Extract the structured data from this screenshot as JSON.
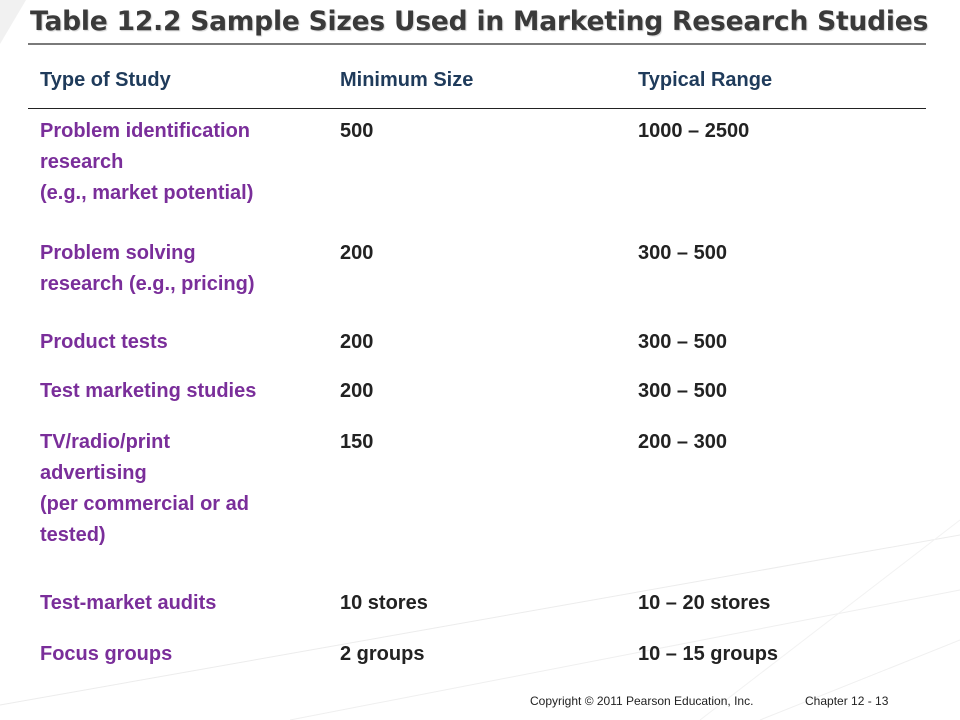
{
  "slide": {
    "title": "Table 12.2 Sample Sizes Used in Marketing Research Studies"
  },
  "table": {
    "headers": [
      "Type of Study",
      "Minimum Size",
      "Typical Range"
    ],
    "rows": [
      {
        "study_lines": [
          "Problem identification",
          "research",
          "(e.g., market potential)"
        ],
        "minimum": "500",
        "range": "1000 – 2500"
      },
      {
        "study_lines": [
          "Problem solving",
          "research (e.g., pricing)"
        ],
        "minimum": "200",
        "range": "300 – 500"
      },
      {
        "study_lines": [
          "Product tests"
        ],
        "minimum": "200",
        "range": "300 – 500"
      },
      {
        "study_lines": [
          "Test marketing studies"
        ],
        "minimum": "200",
        "range": "300 – 500"
      },
      {
        "study_lines": [
          "TV/radio/print",
          "advertising",
          "(per commercial or ad",
          "tested)"
        ],
        "minimum": "150",
        "range": "200 – 300"
      },
      {
        "study_lines": [
          "Test-market audits"
        ],
        "minimum": "10 stores",
        "range": "10 – 20 stores"
      },
      {
        "study_lines": [
          "Focus groups"
        ],
        "minimum": "2 groups",
        "range": "10 – 15 groups"
      }
    ]
  },
  "footer": {
    "copyright": "Copyright © 2011 Pearson Education, Inc.",
    "chapter": "Chapter 12 - 13"
  },
  "colors": {
    "title": "#3a3a3a",
    "header_text": "#1f3b5b",
    "study_text": "#7a2e9a",
    "value_text": "#222222",
    "background": "#ffffff"
  }
}
